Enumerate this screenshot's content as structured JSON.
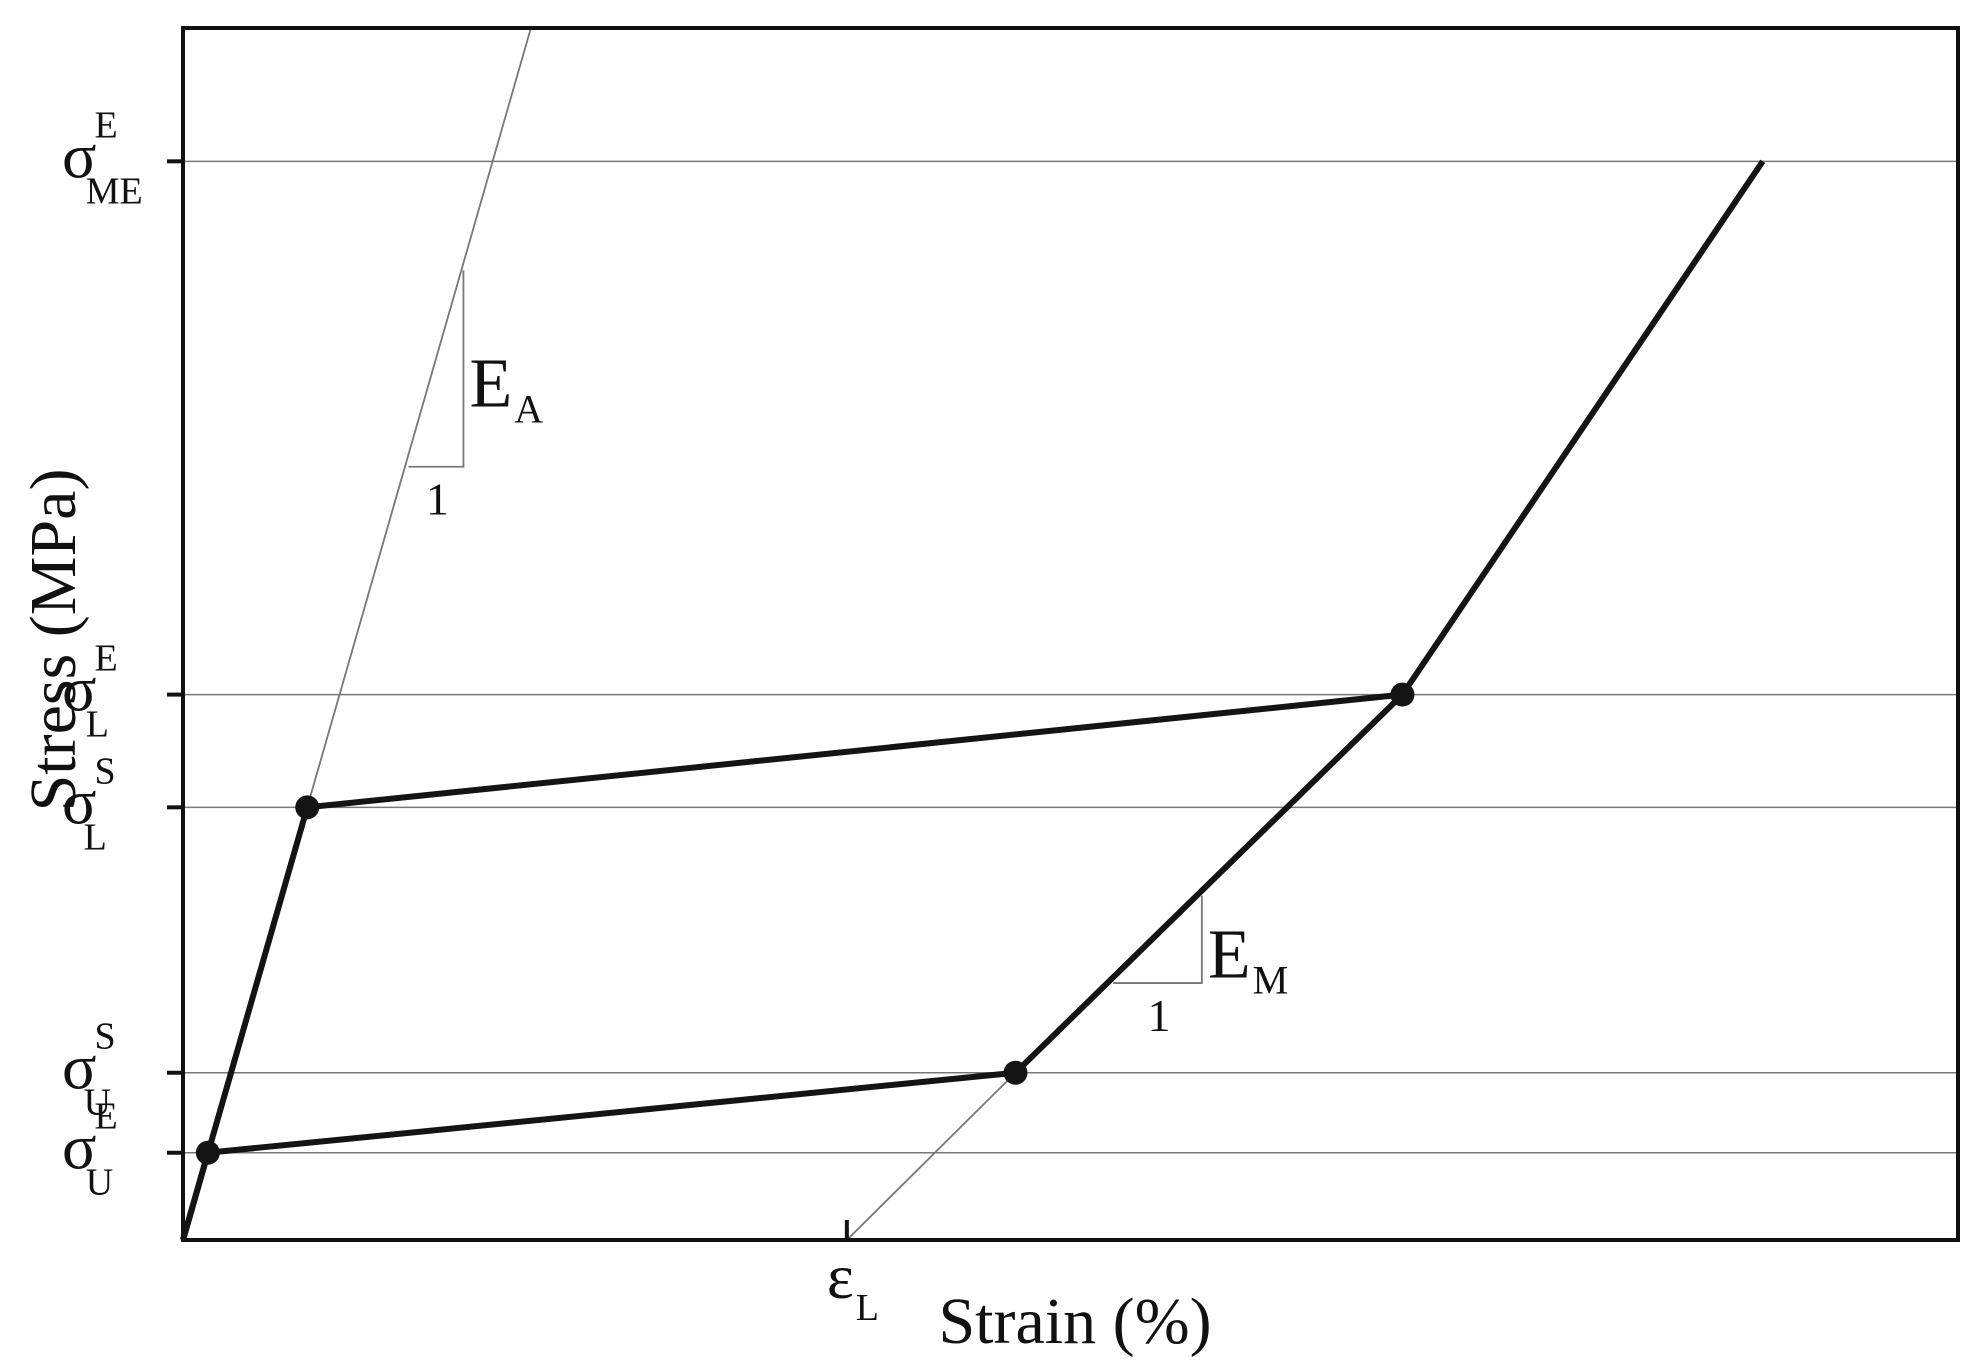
{
  "chart_data": {
    "type": "line",
    "title": "",
    "xlabel": "Strain (%)",
    "ylabel": "Stress (MPa)",
    "xlim": [
      0,
      1.0
    ],
    "ylim": [
      0,
      1.0
    ],
    "grid": "horizontal reference lines at labelled stresses",
    "y_ticks": [
      {
        "main": "σ",
        "sup": "E",
        "sub": "ME",
        "value": 0.89
      },
      {
        "main": "σ",
        "sup": "E",
        "sub": "L",
        "value": 0.45
      },
      {
        "main": "σ",
        "sup": "S",
        "sub": "L",
        "value": 0.357
      },
      {
        "main": "σ",
        "sup": "S",
        "sub": "U",
        "value": 0.138
      },
      {
        "main": "σ",
        "sup": "E",
        "sub": "U",
        "value": 0.072
      }
    ],
    "x_ticks": [
      {
        "main": "ε",
        "sub": "L",
        "value": 0.374
      }
    ],
    "series": [
      {
        "x": [
          0,
          0.07,
          0.687,
          0.89
        ],
        "y": [
          0,
          0.357,
          0.45,
          0.89
        ]
      },
      {
        "x": [
          0,
          0.014,
          0.469,
          0.687
        ],
        "y": [
          0,
          0.072,
          0.138,
          0.45
        ]
      }
    ],
    "markers": [
      {
        "x": 0.07,
        "y": 0.357
      },
      {
        "x": 0.687,
        "y": 0.45
      },
      {
        "x": 0.469,
        "y": 0.138
      },
      {
        "x": 0.014,
        "y": 0.072
      }
    ],
    "construction_lines": [
      {
        "x": [
          0,
          0.196
        ],
        "y": [
          0,
          1.0
        ]
      },
      {
        "x": [
          0.374,
          0.469
        ],
        "y": [
          0,
          0.138
        ]
      }
    ],
    "slope_annotations": [
      {
        "main": "E",
        "sub": "A",
        "one": "1",
        "x1": 0.127,
        "y1": 0.638,
        "x2": 0.158,
        "y2": 0.8
      },
      {
        "main": "E",
        "sub": "M",
        "one": "1",
        "x1": 0.524,
        "y1": 0.212,
        "x2": 0.574,
        "y2": 0.284
      }
    ]
  }
}
